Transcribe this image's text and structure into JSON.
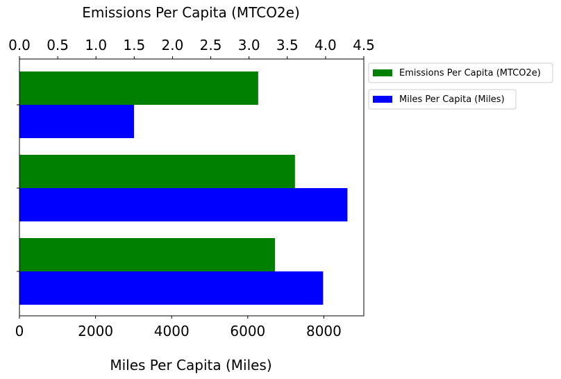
{
  "chart_data": {
    "type": "bar",
    "orientation": "horizontal",
    "categories": [
      "",
      "",
      ""
    ],
    "series": [
      {
        "name": "Emissions Per Capita (MTCO2e)",
        "axis": "top",
        "color": "#008000",
        "values": [
          3.12,
          3.6,
          3.34
        ]
      },
      {
        "name": "Miles Per Capita (Miles)",
        "axis": "bottom",
        "color": "#0000ff",
        "values": [
          3010,
          8620,
          7980
        ]
      }
    ],
    "top_axis": {
      "label": "Emissions Per Capita (MTCO2e)",
      "range": [
        0,
        4.5
      ],
      "ticks": [
        "0.0",
        "0.5",
        "1.0",
        "1.5",
        "2.0",
        "2.5",
        "3.0",
        "3.5",
        "4.0",
        "4.5"
      ]
    },
    "bottom_axis": {
      "label": "Miles Per Capita (Miles)",
      "range": [
        0,
        9050
      ],
      "ticks": [
        "0",
        "2000",
        "4000",
        "6000",
        "8000"
      ]
    },
    "legend_placement": "outside-top-right",
    "grid": false
  }
}
